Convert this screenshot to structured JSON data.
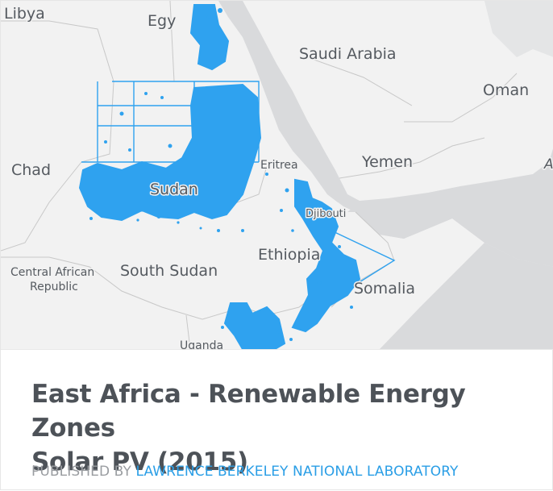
{
  "map": {
    "colors": {
      "land": "#f2f2f2",
      "water": "#d9dadc",
      "border": "#c7c7c7",
      "zone": "#2fa2ef"
    },
    "labels": {
      "libya": "Libya",
      "egypt": "Egy",
      "saudi_arabia": "Saudi Arabia",
      "oman": "Oman",
      "chad": "Chad",
      "eritrea": "Eritrea",
      "yemen": "Yemen",
      "sudan": "Sudan",
      "djibouti": "Djibouti",
      "ethiopia": "Ethiopia",
      "car_line1": "Central African",
      "car_line2": "Republic",
      "south_sudan": "South Sudan",
      "somalia": "Somalia",
      "uganda": "Uganda",
      "edge": "A"
    }
  },
  "dataset": {
    "title_line1": "East Africa - Renewable Energy Zones",
    "title_line2": "Solar PV (2015)",
    "published_by_label": "PUBLISHED BY",
    "publisher": "LAWRENCE BERKELEY NATIONAL LABORATORY"
  }
}
